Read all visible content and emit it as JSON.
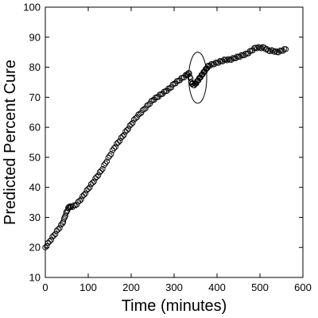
{
  "chart_data": {
    "type": "scatter",
    "title": "",
    "xlabel": "Time (minutes)",
    "ylabel": "Predicted Percent Cure",
    "xlim": [
      0,
      600
    ],
    "ylim": [
      10,
      100
    ],
    "x_ticks": [
      0,
      100,
      200,
      300,
      400,
      500,
      600
    ],
    "y_ticks": [
      10,
      20,
      30,
      40,
      50,
      60,
      70,
      80,
      90,
      100
    ],
    "x_tick_labels": [
      "0",
      "100",
      "200",
      "300",
      "400",
      "500",
      "600"
    ],
    "y_tick_labels": [
      "10",
      "20",
      "30",
      "40",
      "50",
      "60",
      "70",
      "80",
      "90",
      "100"
    ],
    "grid": false,
    "marker": "open-circle",
    "series": [
      {
        "name": "",
        "x": [
          0,
          10,
          20,
          30,
          40,
          45,
          50,
          55,
          60,
          70,
          80,
          90,
          100,
          110,
          120,
          130,
          140,
          150,
          160,
          170,
          180,
          190,
          200,
          210,
          220,
          230,
          240,
          250,
          260,
          270,
          280,
          290,
          300,
          310,
          320,
          330,
          335,
          340,
          345,
          350,
          355,
          360,
          365,
          370,
          375,
          380,
          390,
          400,
          410,
          420,
          430,
          440,
          450,
          460,
          470,
          480,
          490,
          500,
          510,
          520,
          530,
          540,
          550,
          560
        ],
        "y": [
          20,
          22,
          24,
          26,
          28,
          30,
          32,
          33.5,
          33.5,
          34,
          35.5,
          37.5,
          39.5,
          41.5,
          43.5,
          45.5,
          48,
          50.5,
          53,
          55,
          57,
          59,
          61,
          63,
          64.5,
          66,
          67.5,
          69,
          70,
          71,
          72,
          73,
          74.5,
          75.5,
          76.5,
          77.5,
          78,
          75,
          74,
          74.5,
          75.5,
          76.5,
          77.5,
          78.5,
          79.5,
          80.5,
          81,
          81.5,
          82,
          82.5,
          82.5,
          83,
          83.5,
          84,
          84.5,
          85.5,
          86.5,
          86.5,
          86.5,
          85.5,
          85.5,
          85,
          85.5,
          86
        ]
      }
    ],
    "annotations": [
      {
        "type": "ellipse",
        "cx": 355,
        "cy": 76.5,
        "rx": 42,
        "ry": 8.5
      }
    ]
  }
}
